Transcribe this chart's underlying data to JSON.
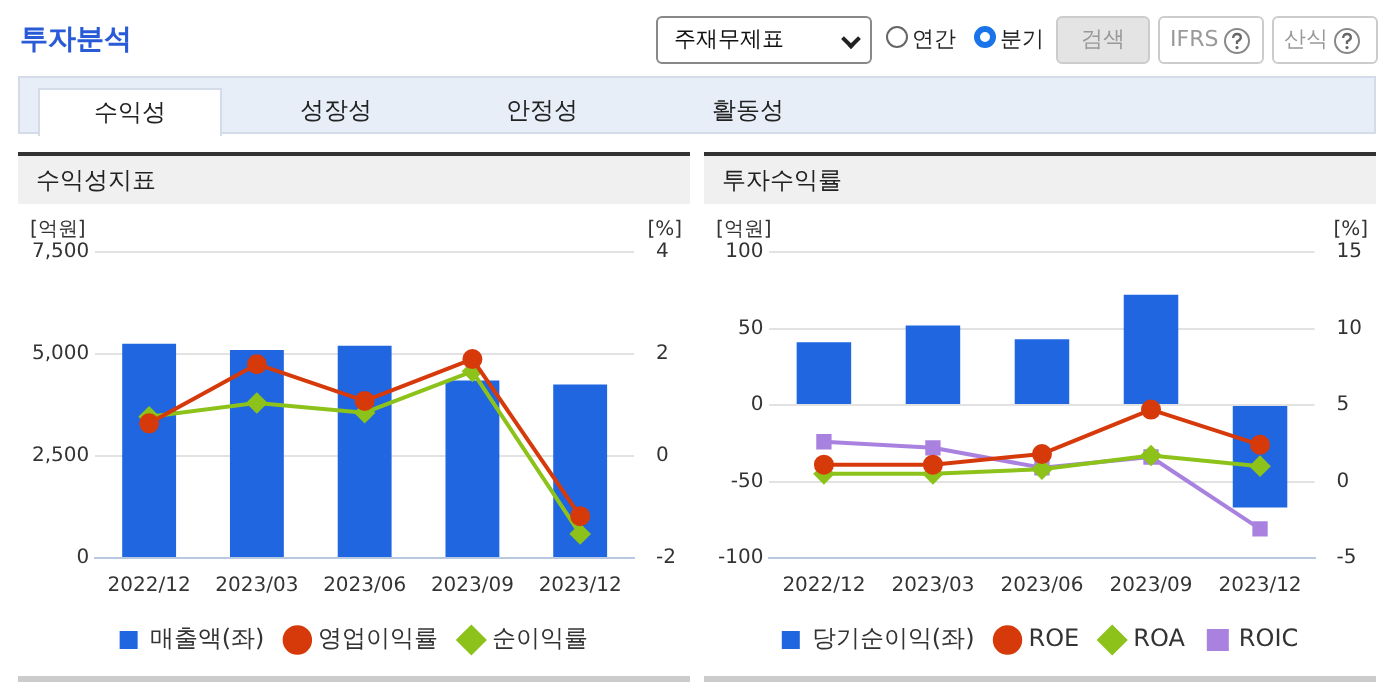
{
  "chart_data": [
    {
      "type": "bar",
      "title": "수익성지표",
      "ylabel": "[억원]",
      "y2label": "[%]",
      "annotations": [
        "투자분석",
        "주재무제표",
        "연간",
        "분기",
        "검색",
        "IFRS",
        "산식",
        "수익성",
        "성장성",
        "안정성",
        "활동성"
      ],
      "categories": [
        "2022/12",
        "2023/03",
        "2023/06",
        "2023/09",
        "2023/12"
      ],
      "series": [
        {
          "name": "매출액(좌)",
          "color": "#1f66e0",
          "values": [
            5250,
            5100,
            5200,
            4350,
            4250
          ]
        },
        {
          "name": "영업이익률",
          "type": "line",
          "axis": "y2",
          "marker": "circle",
          "color": "#d63a0a",
          "values": [
            0.64,
            1.8,
            1.08,
            1.9,
            -1.18
          ]
        },
        {
          "name": "순이익률",
          "type": "line",
          "axis": "y2",
          "marker": "diamond",
          "color": "#8cc21a",
          "values": [
            0.77,
            1.04,
            0.85,
            1.66,
            -1.53
          ]
        }
      ],
      "ylim": [
        0,
        7500
      ],
      "yticks": [
        {
          "value": 0,
          "label": "0"
        },
        {
          "value": 2500,
          "label": "2,500"
        },
        {
          "value": 5000,
          "label": "5,000"
        },
        {
          "value": 7500,
          "label": "7,500"
        }
      ],
      "y2lim": [
        -2,
        4
      ],
      "y2ticks": [
        -2,
        0,
        2,
        4
      ],
      "grid": "y",
      "legend": "bottom"
    },
    {
      "type": "bar",
      "title": "투자수익률",
      "ylabel": "[억원]",
      "y2label": "[%]",
      "categories": [
        "2022/12",
        "2023/03",
        "2023/06",
        "2023/09",
        "2023/12"
      ],
      "series": [
        {
          "name": "당기순이익(좌)",
          "color": "#1f66e0",
          "values": [
            41,
            52,
            43,
            72,
            -67
          ]
        },
        {
          "name": "ROE",
          "type": "line",
          "axis": "y2",
          "marker": "circle",
          "color": "#d63a0a",
          "values": [
            1.1,
            1.1,
            1.8,
            4.7,
            2.4
          ]
        },
        {
          "name": "ROA",
          "type": "line",
          "axis": "y2",
          "marker": "diamond",
          "color": "#8cc21a",
          "values": [
            0.5,
            0.5,
            0.8,
            1.7,
            1.0
          ]
        },
        {
          "name": "ROIC",
          "type": "line",
          "axis": "y2",
          "marker": "square",
          "color": "#a982e0",
          "values": [
            2.6,
            2.2,
            0.9,
            1.6,
            -3.1
          ]
        }
      ],
      "ylim": [
        -100,
        100
      ],
      "yticks": [
        -100,
        -50,
        0,
        50,
        100
      ],
      "y2lim": [
        -5,
        15
      ],
      "y2ticks": [
        -5,
        0,
        5,
        10,
        15
      ],
      "grid": "y",
      "legend": "bottom"
    }
  ]
}
